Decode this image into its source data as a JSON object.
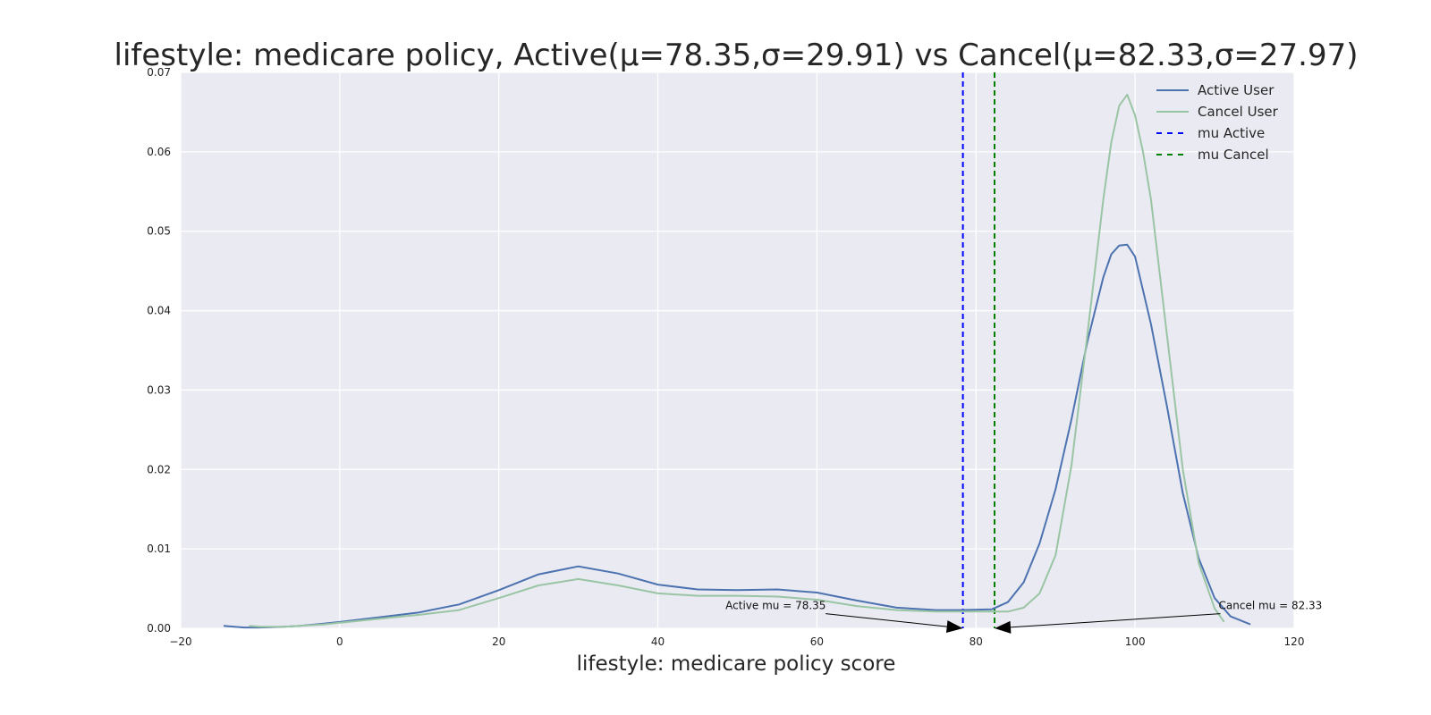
{
  "chart_data": {
    "type": "line",
    "title": "lifestyle: medicare policy, Active(μ=78.35,σ=29.91) vs Cancel(μ=82.33,σ=27.97)",
    "xlabel": "lifestyle: medicare policy score",
    "ylabel": "",
    "xlim": [
      -20,
      120
    ],
    "ylim": [
      0,
      0.07
    ],
    "xticks": [
      -20,
      0,
      20,
      40,
      60,
      80,
      100,
      120
    ],
    "xtick_labels": [
      "−20",
      "0",
      "20",
      "40",
      "60",
      "80",
      "100",
      "120"
    ],
    "yticks": [
      0.0,
      0.01,
      0.02,
      0.03,
      0.04,
      0.05,
      0.06,
      0.07
    ],
    "ytick_labels": [
      "0.00",
      "0.01",
      "0.02",
      "0.03",
      "0.04",
      "0.05",
      "0.06",
      "0.07"
    ],
    "grid": true,
    "legend_position": "top-right",
    "series": [
      {
        "name": "Active User",
        "color": "#4c72b0",
        "x": [
          -14.6,
          -12,
          -10,
          -7,
          -5,
          -2,
          0,
          5,
          10,
          15,
          20,
          25,
          30,
          35,
          40,
          45,
          50,
          55,
          60,
          65,
          70,
          75,
          78,
          82,
          84,
          86,
          88,
          90,
          92,
          94,
          96,
          97,
          98,
          99,
          100,
          102,
          104,
          106,
          108,
          110,
          112,
          114.5
        ],
        "y": [
          0.0003,
          0.0001,
          0.0001,
          0.0002,
          0.0003,
          0.0006,
          0.0008,
          0.0014,
          0.002,
          0.003,
          0.0048,
          0.0068,
          0.0078,
          0.0069,
          0.0055,
          0.0049,
          0.0048,
          0.0049,
          0.0045,
          0.0035,
          0.0026,
          0.0023,
          0.0023,
          0.0024,
          0.0033,
          0.0058,
          0.0107,
          0.0175,
          0.0263,
          0.0361,
          0.0442,
          0.0471,
          0.0482,
          0.0483,
          0.0468,
          0.0383,
          0.028,
          0.017,
          0.0088,
          0.0038,
          0.0015,
          0.0005
        ]
      },
      {
        "name": "Cancel User",
        "color": "#9ac5a4",
        "x": [
          -11.4,
          -10,
          -7,
          -5,
          -2,
          0,
          5,
          10,
          15,
          20,
          25,
          30,
          35,
          40,
          45,
          50,
          55,
          60,
          65,
          70,
          75,
          80,
          84,
          86,
          88,
          90,
          92,
          94,
          96,
          97,
          98,
          99,
          100,
          101,
          102,
          104,
          106,
          108,
          110,
          111.2
        ],
        "y": [
          0.0003,
          0.0002,
          0.0002,
          0.0003,
          0.0005,
          0.0007,
          0.0012,
          0.0017,
          0.0023,
          0.0038,
          0.0054,
          0.0062,
          0.0054,
          0.0044,
          0.0041,
          0.0041,
          0.004,
          0.0036,
          0.0028,
          0.0023,
          0.0021,
          0.0021,
          0.0021,
          0.0026,
          0.0044,
          0.0092,
          0.0205,
          0.037,
          0.054,
          0.0612,
          0.0658,
          0.0672,
          0.0646,
          0.06,
          0.054,
          0.037,
          0.02,
          0.0082,
          0.0025,
          0.0008
        ]
      }
    ],
    "vlines": [
      {
        "name": "mu Active",
        "x": 78.35,
        "color": "#0000ff",
        "style": "dashed"
      },
      {
        "name": "mu Cancel",
        "x": 82.33,
        "color": "#008000",
        "style": "dashed"
      }
    ],
    "annotations": [
      {
        "text": "Active mu = 78.35",
        "xy": [
          78.35,
          0.0
        ],
        "xytext": [
          48.5,
          0.0024
        ],
        "align": "left"
      },
      {
        "text": "Cancel mu = 82.33",
        "xy": [
          82.33,
          0.0
        ],
        "xytext": [
          110.5,
          0.0024
        ],
        "align": "left"
      }
    ],
    "legend": [
      {
        "label": "Active User",
        "color": "#4c72b0",
        "style": "solid"
      },
      {
        "label": "Cancel User",
        "color": "#9ac5a4",
        "style": "solid"
      },
      {
        "label": "mu Active",
        "color": "#0000ff",
        "style": "dashed"
      },
      {
        "label": "mu Cancel",
        "color": "#008000",
        "style": "dashed"
      }
    ],
    "colors": {
      "plot_background": "#eaeaf2",
      "grid": "#ffffff"
    }
  }
}
